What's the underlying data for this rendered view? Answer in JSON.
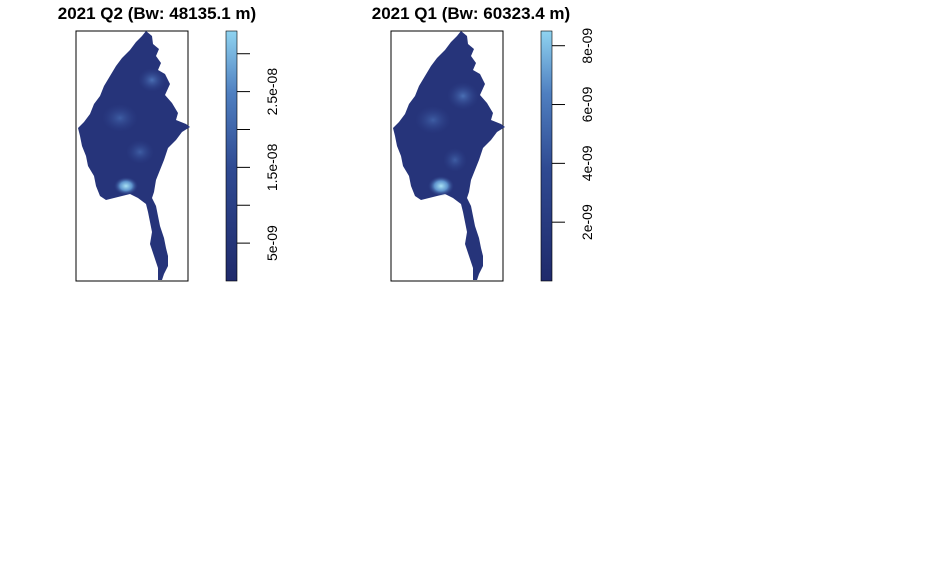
{
  "chart_data": [
    {
      "type": "heatmap",
      "title": "2021 Q2 (Bw: 48135.1 m)",
      "legend": {
        "ticks": [
          {
            "label": "5e-09",
            "value": 5e-09
          },
          {
            "label": "1.5e-08",
            "value": 1.5e-08
          },
          {
            "label": "2.5e-08",
            "value": 2.5e-08
          }
        ],
        "minor_ticks": [
          1e-08,
          2e-08,
          3e-08
        ],
        "range": [
          0,
          3.3e-08
        ]
      },
      "hotspot": {
        "location": "Yangon area (south-central)",
        "level": "high"
      }
    },
    {
      "type": "heatmap",
      "title": "2021 Q1 (Bw: 60323.4 m)",
      "legend": {
        "ticks": [
          {
            "label": "2e-09",
            "value": 2e-09
          },
          {
            "label": "4e-09",
            "value": 4e-09
          },
          {
            "label": "6e-09",
            "value": 6e-09
          },
          {
            "label": "8e-09",
            "value": 8e-09
          }
        ],
        "minor_ticks": [],
        "range": [
          0,
          8.5e-09
        ]
      },
      "hotspot": {
        "location": "Yangon area (south-central)",
        "level": "high"
      }
    }
  ],
  "colors": {
    "low": "#1f2a6b",
    "mid": "#3a5fa8",
    "high": "#8fd3f0"
  }
}
